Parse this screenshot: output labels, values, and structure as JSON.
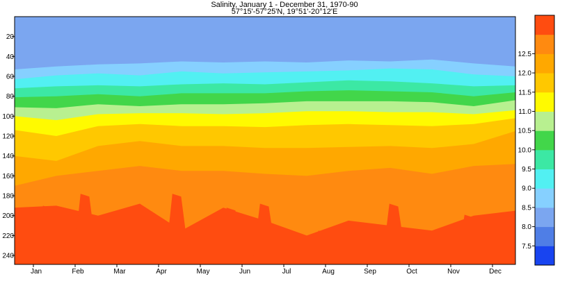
{
  "chart_data": {
    "type": "heatmap",
    "title": "Salinity, January 1 - December 31, 1970-90",
    "subtitle": "57°15'-57°25'N, 19°51'-20°12'E",
    "xlabel": "",
    "ylabel": "",
    "x_months": [
      "Jan",
      "Feb",
      "Mar",
      "Apr",
      "May",
      "Jun",
      "Jul",
      "Aug",
      "Sep",
      "Oct",
      "Nov",
      "Dec"
    ],
    "y_ticks": [
      20,
      40,
      60,
      80,
      100,
      120,
      140,
      160,
      180,
      200,
      220,
      240
    ],
    "ylim": [
      0,
      249
    ],
    "y_inverted": true,
    "colorbar": {
      "levels": [
        7.5,
        8.0,
        8.5,
        9.0,
        9.5,
        10.0,
        10.5,
        11.0,
        11.5,
        12.0,
        12.5
      ],
      "tick_labels": [
        "7.5",
        "8.0",
        "8.5",
        "9.0",
        "9.5",
        "10.0",
        "10.5",
        "11.0",
        "11.5",
        "12.0",
        "12.5"
      ],
      "colors": [
        "#1844f0",
        "#4f7ee6",
        "#7ba6f0",
        "#86d0ff",
        "#52f0f2",
        "#3ce8a4",
        "#42d64a",
        "#b8f090",
        "#fffa00",
        "#ffc800",
        "#ffa800",
        "#ff8a10",
        "#ff4c10"
      ]
    },
    "isolines": [
      {
        "level": 8.0,
        "depth": [
          53,
          50,
          48,
          47,
          45,
          46,
          45,
          46,
          44,
          45,
          43,
          47,
          50
        ]
      },
      {
        "level": 8.5,
        "depth": [
          63,
          59,
          57,
          59,
          55,
          57,
          56,
          55,
          54,
          52,
          53,
          58,
          60
        ]
      },
      {
        "level": 9.0,
        "depth": [
          72,
          70,
          69,
          70,
          68,
          67,
          68,
          66,
          64,
          65,
          67,
          70,
          69
        ]
      },
      {
        "level": 9.5,
        "depth": [
          81,
          80,
          78,
          80,
          77,
          77,
          77,
          75,
          74,
          75,
          76,
          80,
          76
        ]
      },
      {
        "level": 10.0,
        "depth": [
          91,
          92,
          88,
          90,
          88,
          88,
          87,
          85,
          85,
          85,
          86,
          90,
          84
        ]
      },
      {
        "level": 10.5,
        "depth": [
          100,
          104,
          98,
          97,
          97,
          98,
          97,
          95,
          95,
          96,
          96,
          98,
          94
        ]
      },
      {
        "level": 11.0,
        "depth": [
          114,
          120,
          110,
          108,
          110,
          110,
          111,
          109,
          108,
          109,
          110,
          108,
          102
        ]
      },
      {
        "level": 11.5,
        "depth": [
          140,
          145,
          130,
          125,
          130,
          130,
          132,
          132,
          131,
          130,
          132,
          128,
          115
        ]
      },
      {
        "level": 12.0,
        "depth": [
          170,
          160,
          155,
          150,
          155,
          155,
          158,
          160,
          155,
          152,
          158,
          150,
          148
        ]
      },
      {
        "level": 12.5,
        "depth": [
          192,
          190,
          200,
          188,
          215,
          192,
          205,
          220,
          205,
          210,
          215,
          200,
          195
        ]
      }
    ],
    "max_patches_12_5": [
      {
        "month_pos": 0.4,
        "top_depth": 190
      },
      {
        "month_pos": 1.3,
        "top_depth": 178
      },
      {
        "month_pos": 2.8,
        "top_depth": 193
      },
      {
        "month_pos": 3.5,
        "top_depth": 178
      },
      {
        "month_pos": 4.8,
        "top_depth": 192
      },
      {
        "month_pos": 5.6,
        "top_depth": 188
      },
      {
        "month_pos": 7.0,
        "top_depth": 215
      },
      {
        "month_pos": 8.7,
        "top_depth": 188
      },
      {
        "month_pos": 10.5,
        "top_depth": 199
      }
    ]
  }
}
